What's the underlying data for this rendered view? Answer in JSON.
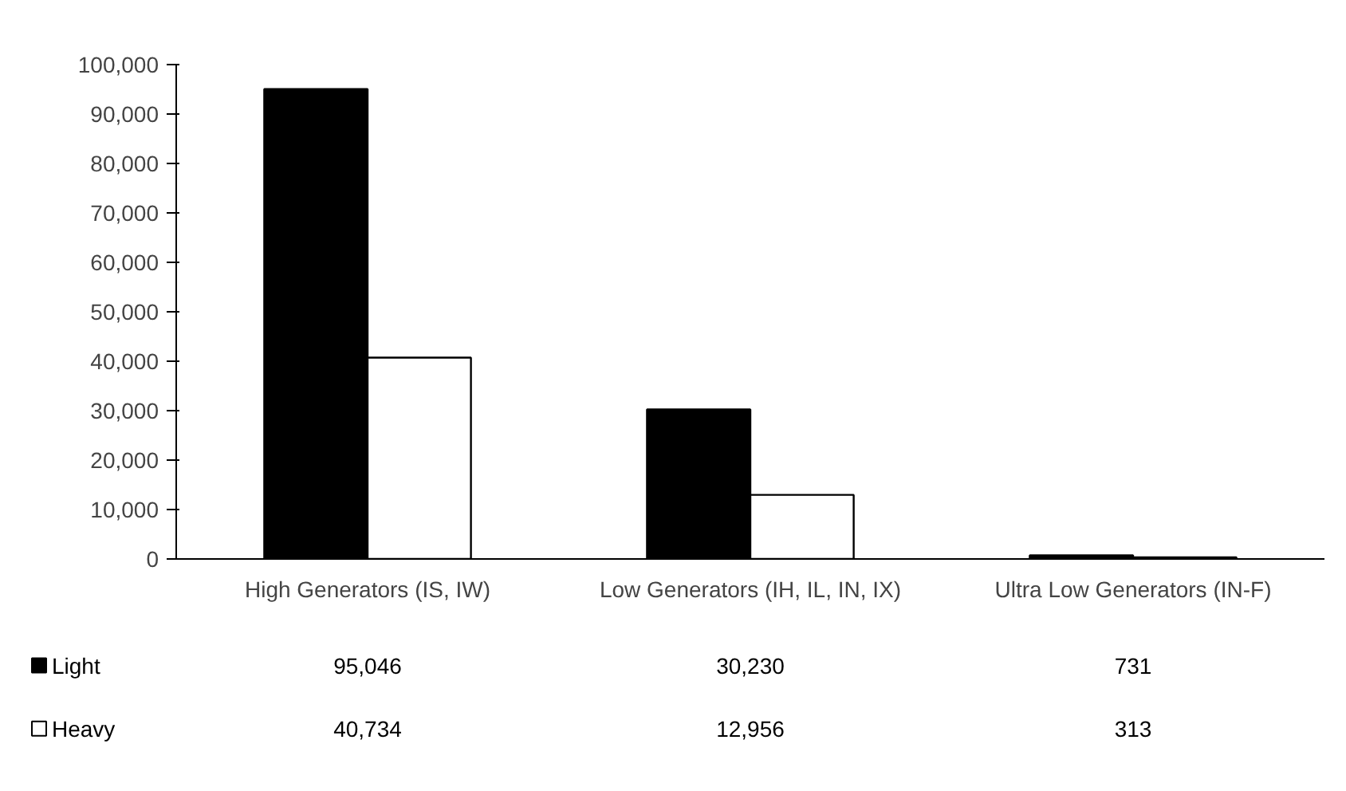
{
  "chart_data": {
    "type": "bar",
    "categories": [
      "High Generators (IS, IW)",
      "Low Generators (IH, IL, IN, IX)",
      "Ultra Low Generators (IN-F)"
    ],
    "series": [
      {
        "name": "Light",
        "color": "#000000",
        "values": [
          95046,
          30230,
          731
        ],
        "value_labels": [
          "95,046",
          "30,230",
          "731"
        ]
      },
      {
        "name": "Heavy",
        "color": "#ffffff",
        "values": [
          40734,
          12956,
          313
        ],
        "value_labels": [
          "40,734",
          "12,956",
          "313"
        ]
      }
    ],
    "ylim": [
      0,
      100000
    ],
    "yticks": [
      0,
      {
        "value": 10000,
        "label": "10,000"
      },
      {
        "value": 20000,
        "label": "20,000"
      },
      {
        "value": 30000,
        "label": "30,000"
      },
      {
        "value": 40000,
        "label": "40,000"
      },
      {
        "value": 50000,
        "label": "50,000"
      },
      {
        "value": 60000,
        "label": "60,000"
      },
      {
        "value": 70000,
        "label": "70,000"
      },
      {
        "value": 80000,
        "label": "80,000"
      },
      {
        "value": 90000,
        "label": "90,000"
      },
      {
        "value": 100000,
        "label": "100,000"
      }
    ],
    "grid": false,
    "legend": "bottom left"
  }
}
